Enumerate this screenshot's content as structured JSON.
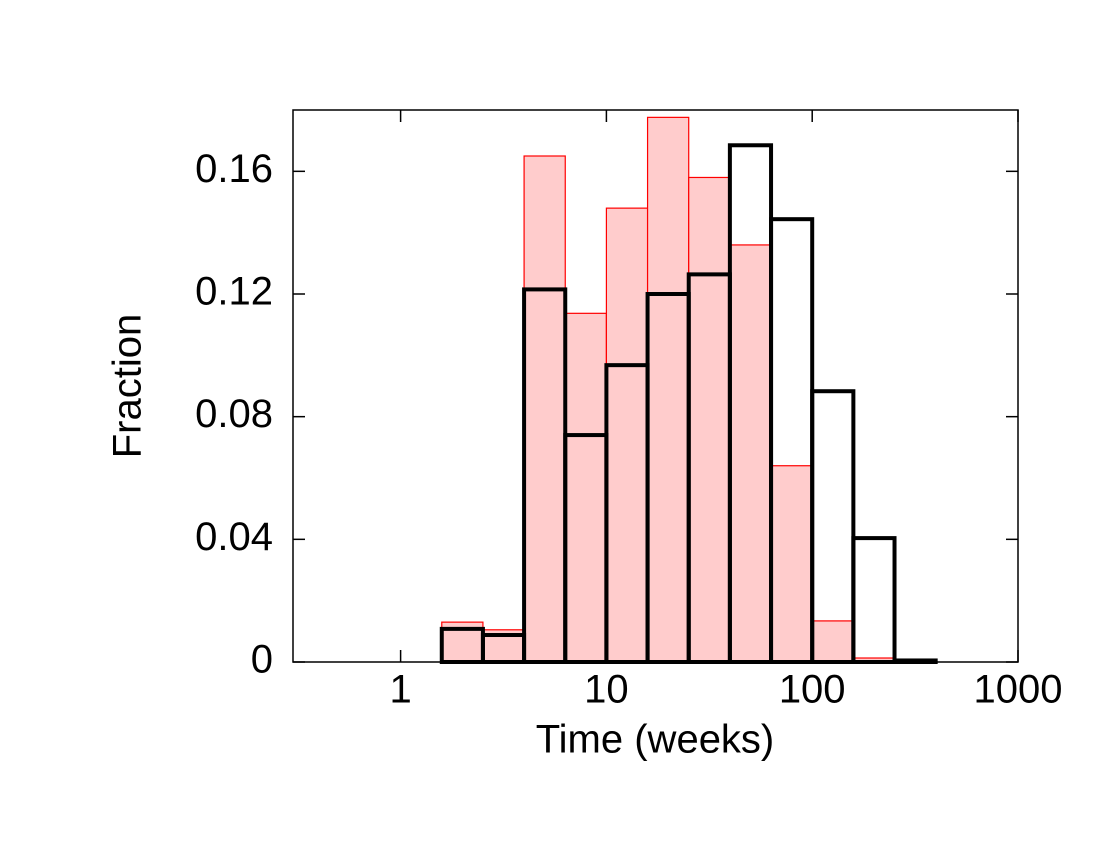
{
  "chart_data": {
    "type": "histogram",
    "xlabel": "Time (weeks)",
    "ylabel": "Fraction",
    "xscale": "log",
    "bins": [
      1.585,
      2.512,
      3.981,
      6.31,
      10,
      15.85,
      25.12,
      39.81,
      63.1,
      100,
      158.5,
      251.2,
      398.1
    ],
    "series": [
      {
        "fill": "#ffcccc",
        "color": "#ff0000",
        "filled": true,
        "values": [
          0.013,
          0.0105,
          0.165,
          0.1137,
          0.148,
          0.1776,
          0.158,
          0.136,
          0.064,
          0.0134,
          0.0013,
          0
        ]
      },
      {
        "fill": "none",
        "color": "#000000",
        "filled": false,
        "values": [
          0.0108,
          0.0088,
          0.1215,
          0.074,
          0.0968,
          0.12,
          0.1264,
          0.1685,
          0.1444,
          0.0883,
          0.0404,
          0.0005
        ]
      }
    ],
    "xlim": [
      0.3,
      1000
    ],
    "ylim": [
      0,
      0.18
    ],
    "xticks": [
      1,
      10,
      100,
      1000
    ],
    "yticks": [
      0,
      0.04,
      0.08,
      0.12,
      0.16
    ]
  }
}
